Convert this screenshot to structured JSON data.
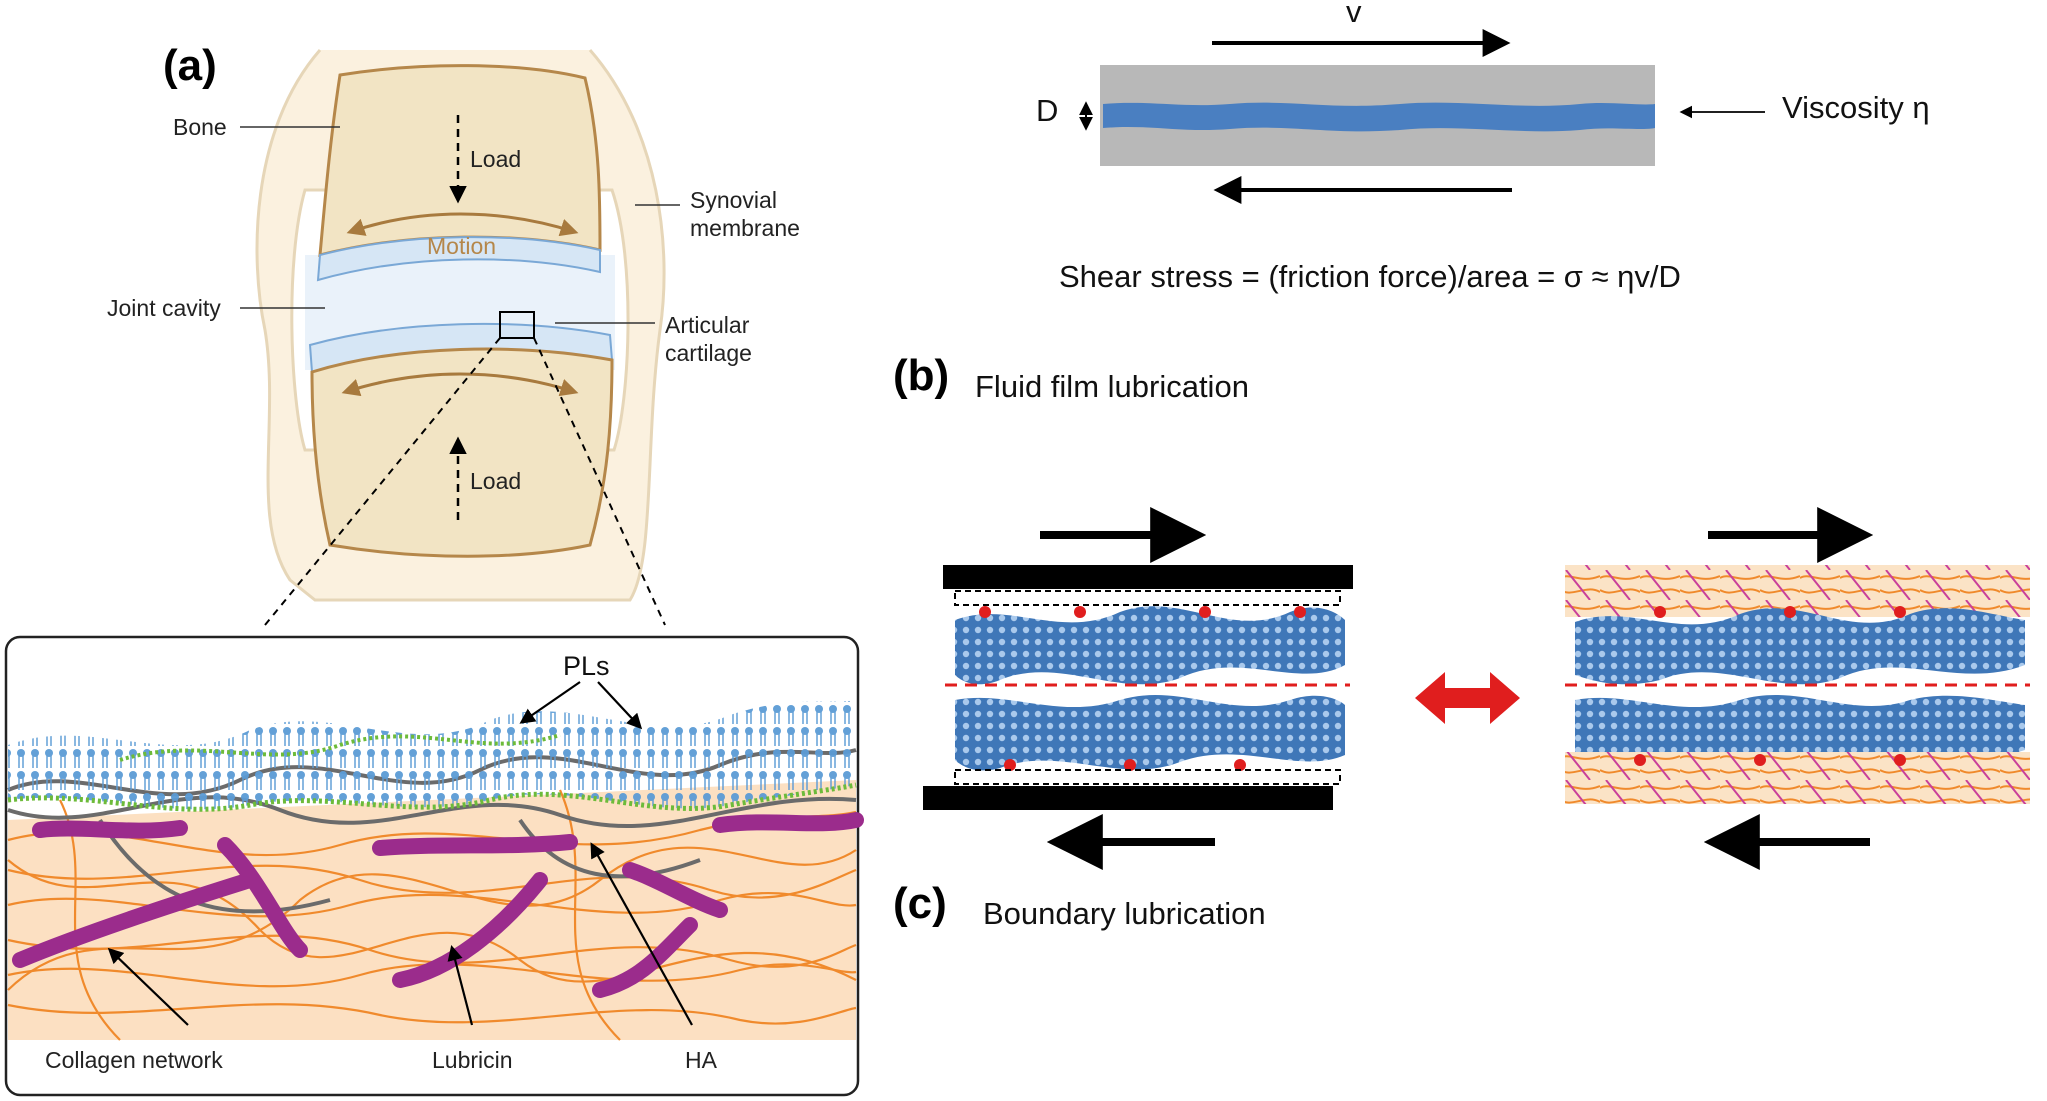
{
  "panel_a": {
    "label": "(a)",
    "joint": {
      "bone": "Bone",
      "load_top": "Load",
      "motion": "Motion",
      "load_bottom": "Load",
      "synovial_line1": "Synovial",
      "synovial_line2": "membrane",
      "joint_cavity": "Joint cavity",
      "articular_line1": "Articular",
      "articular_line2": "cartilage"
    },
    "inset": {
      "pls": "PLs",
      "collagen": "Collagen network",
      "lubricin": "Lubricin",
      "ha": "HA"
    }
  },
  "panel_b": {
    "label": "(b)",
    "title": "Fluid film lubrication",
    "velocity": "v",
    "gap": "D",
    "viscosity": "Viscosity η",
    "equation": "Shear stress = (friction force)/area = σ ≈ ηv/D"
  },
  "panel_c": {
    "label": "(c)",
    "title": "Boundary lubrication"
  },
  "colors": {
    "bone_fill": "#f2e4c4",
    "bone_edge": "#b5874a",
    "cartilage": "#d6e6f5",
    "collagen": "#f08a2c",
    "lubricin": "#9b2c8c",
    "ha": "#6b6b6b",
    "phospholipid": "#5b9bd5",
    "phospholipid_green": "#6dbb3a",
    "fluid_film": "#4a7fc1",
    "plate_grey": "#b8b8b8",
    "red_arrow": "#e01e1e"
  }
}
